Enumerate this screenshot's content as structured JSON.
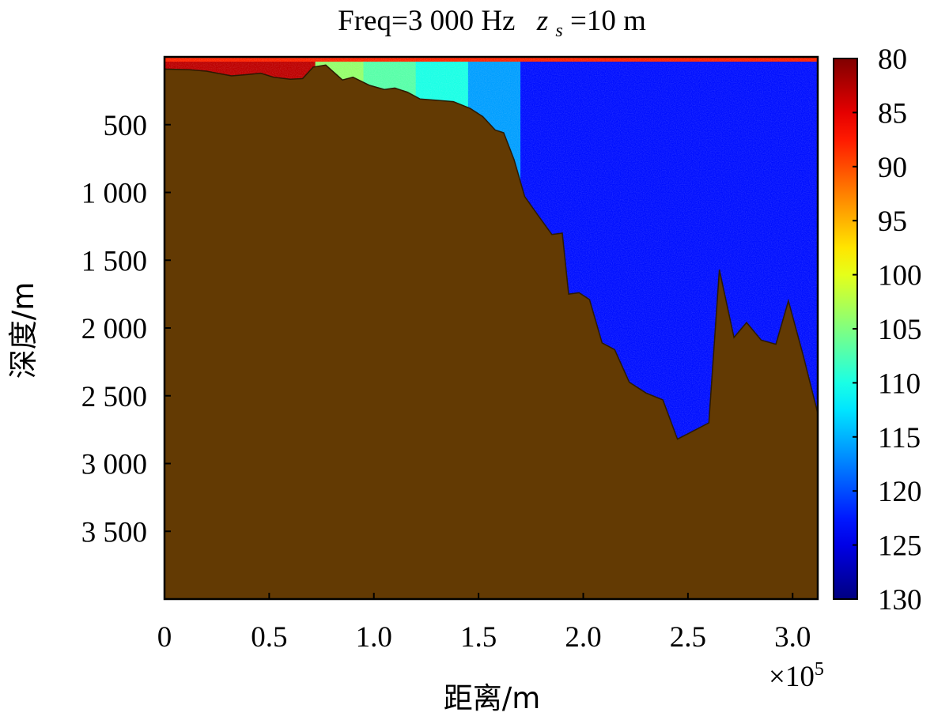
{
  "chart_data": {
    "type": "heatmap",
    "title": {
      "text": "Freq=3 000 Hz",
      "source_var": "z",
      "source_sub": "s",
      "source_val": "=10 m"
    },
    "xlabel": "距离/m",
    "ylabel": "深度/m",
    "x_multiplier": "×10",
    "x_multiplier_exp": "5",
    "xlim": [
      0,
      3.12
    ],
    "ylim": [
      0,
      4000
    ],
    "y_inverted": true,
    "x_ticks": [
      0,
      0.5,
      1.0,
      1.5,
      2.0,
      2.5,
      3.0
    ],
    "x_tick_labels": [
      "0",
      "0.5",
      "1.0",
      "1.5",
      "2.0",
      "2.5",
      "3.0"
    ],
    "y_ticks": [
      500,
      1000,
      1500,
      2000,
      2500,
      3000,
      3500
    ],
    "y_tick_labels": [
      "500",
      "1 000",
      "1 500",
      "2 000",
      "2 500",
      "3 000",
      "3 500"
    ],
    "colorbar": {
      "range": [
        80,
        130
      ],
      "reversed": true,
      "ticks": [
        80,
        85,
        90,
        95,
        100,
        105,
        110,
        115,
        120,
        125,
        130
      ],
      "tick_labels": [
        "80",
        "85",
        "90",
        "95",
        "100",
        "105",
        "110",
        "115",
        "120",
        "125",
        "130"
      ],
      "colormap": "jet"
    },
    "bathymetry": {
      "range_1e5_m": [
        0,
        0.12,
        0.2,
        0.32,
        0.4,
        0.46,
        0.52,
        0.6,
        0.66,
        0.71,
        0.77,
        0.85,
        0.9,
        0.98,
        1.05,
        1.1,
        1.16,
        1.22,
        1.3,
        1.38,
        1.46,
        1.52,
        1.58,
        1.62,
        1.67,
        1.72,
        1.78,
        1.85,
        1.9,
        1.93,
        1.98,
        2.03,
        2.09,
        2.15,
        2.22,
        2.3,
        2.38,
        2.45,
        2.5,
        2.6,
        2.65,
        2.72,
        2.78,
        2.85,
        2.92,
        2.98,
        3.05,
        3.12
      ],
      "depth_m": [
        90,
        95,
        105,
        140,
        130,
        120,
        150,
        165,
        160,
        75,
        60,
        170,
        150,
        210,
        240,
        230,
        260,
        310,
        320,
        330,
        380,
        440,
        540,
        560,
        760,
        1030,
        1160,
        1310,
        1300,
        1750,
        1740,
        1790,
        2110,
        2160,
        2400,
        2480,
        2530,
        2820,
        2780,
        2700,
        1570,
        2070,
        1960,
        2090,
        2120,
        1800,
        2200,
        2630
      ]
    },
    "seabed_color": "#633A03",
    "field_zones": [
      {
        "x_start": 0,
        "x_end": 0.72,
        "value_dB": 83
      },
      {
        "x_start": 0.72,
        "x_end": 0.95,
        "value_dB": 104
      },
      {
        "x_start": 0.95,
        "x_end": 1.2,
        "value_dB": 107
      },
      {
        "x_start": 1.2,
        "x_end": 1.45,
        "value_dB": 110
      },
      {
        "x_start": 1.45,
        "x_end": 1.7,
        "value_dB": 116
      },
      {
        "x_start": 1.7,
        "x_end": 3.12,
        "value_dB": 123
      }
    ],
    "surface_value_dB": 88
  }
}
